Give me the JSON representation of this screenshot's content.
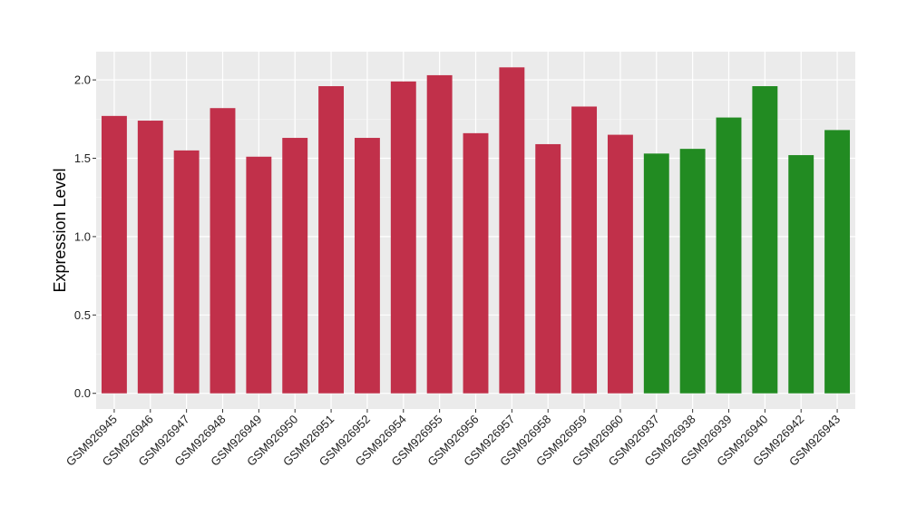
{
  "chart_data": {
    "type": "bar",
    "ylabel": "Expression Level",
    "xlabel": "",
    "title": "",
    "ylim": [
      -0.1,
      2.18
    ],
    "yticks": [
      "0.0",
      "0.5",
      "1.0",
      "1.5",
      "2.0"
    ],
    "grid": true,
    "background": "#EBEBEB",
    "categories": [
      "GSM926945",
      "GSM926946",
      "GSM926947",
      "GSM926948",
      "GSM926949",
      "GSM926950",
      "GSM926951",
      "GSM926952",
      "GSM926954",
      "GSM926955",
      "GSM926956",
      "GSM926957",
      "GSM926958",
      "GSM926959",
      "GSM926960",
      "GSM926937",
      "GSM926938",
      "GSM926939",
      "GSM926940",
      "GSM926942",
      "GSM926943"
    ],
    "values": [
      1.77,
      1.74,
      1.55,
      1.82,
      1.51,
      1.63,
      1.96,
      1.63,
      1.99,
      2.03,
      1.66,
      2.08,
      1.59,
      1.83,
      1.65,
      1.53,
      1.56,
      1.76,
      1.96,
      1.52,
      1.68
    ],
    "bar_colors": [
      "#C1304A",
      "#C1304A",
      "#C1304A",
      "#C1304A",
      "#C1304A",
      "#C1304A",
      "#C1304A",
      "#C1304A",
      "#C1304A",
      "#C1304A",
      "#C1304A",
      "#C1304A",
      "#C1304A",
      "#C1304A",
      "#C1304A",
      "#228B22",
      "#228B22",
      "#228B22",
      "#228B22",
      "#228B22",
      "#228B22"
    ]
  }
}
